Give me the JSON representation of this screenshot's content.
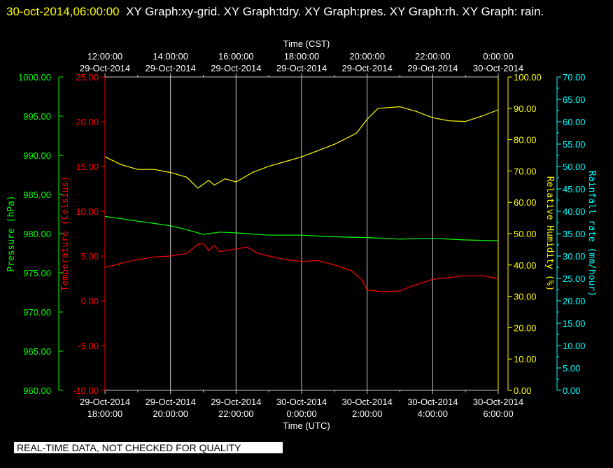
{
  "header": {
    "timestamp": "30-oct-2014,06:00:00",
    "graphs": "XY Graph:xy-grid.  XY Graph:tdry.  XY Graph:pres.  XY Graph:rh.  XY Graph: rain."
  },
  "footer_notice": "REAL-TIME DATA, NOT CHECKED FOR QUALITY",
  "colors": {
    "background": "#000000",
    "grid": "#c8c8c8",
    "temperature": "#ff0000",
    "pressure": "#00ff00",
    "humidity": "#ffff00",
    "rain": "#00ffff"
  },
  "chart_data": {
    "type": "line",
    "grid": true,
    "x_top": {
      "label": "Time (CST)",
      "ticks": [
        {
          "time": "12:00:00",
          "date": "29-Oct-2014"
        },
        {
          "time": "14:00:00",
          "date": "29-Oct-2014"
        },
        {
          "time": "16:00:00",
          "date": "29-Oct-2014"
        },
        {
          "time": "18:00:00",
          "date": "29-Oct-2014"
        },
        {
          "time": "20:00:00",
          "date": "29-Oct-2014"
        },
        {
          "time": "22:00:00",
          "date": "29-Oct-2014"
        },
        {
          "time": "0:00:00",
          "date": "30-Oct-2014"
        }
      ]
    },
    "x_bottom": {
      "label": "Time (UTC)",
      "ticks": [
        {
          "date": "29-Oct-2014",
          "time": "18:00:00"
        },
        {
          "date": "29-Oct-2014",
          "time": "20:00:00"
        },
        {
          "date": "29-Oct-2014",
          "time": "22:00:00"
        },
        {
          "date": "30-Oct-2014",
          "time": "0:00:00"
        },
        {
          "date": "30-Oct-2014",
          "time": "2:00:00"
        },
        {
          "date": "30-Oct-2014",
          "time": "4:00:00"
        },
        {
          "date": "30-Oct-2014",
          "time": "6:00:00"
        }
      ]
    },
    "axes": {
      "pressure": {
        "label": "Pressure (hPa)",
        "ylim": [
          960,
          1000
        ],
        "ticks": [
          "1000.00",
          "995.00",
          "990.00",
          "985.00",
          "980.00",
          "975.00",
          "970.00",
          "965.00",
          "960.00"
        ]
      },
      "temperature": {
        "label": "Temperature (Celsius)",
        "ylim": [
          -10,
          25
        ],
        "ticks": [
          "25.00",
          "20.00",
          "15.00",
          "10.00",
          "5.00",
          "0.00",
          "-5.00",
          "-10.00"
        ]
      },
      "humidity": {
        "label": "Relative Humidity (%)",
        "ylim": [
          0,
          100
        ],
        "ticks": [
          "100.00",
          "90.00",
          "80.00",
          "70.00",
          "60.00",
          "50.00",
          "40.00",
          "30.00",
          "20.00",
          "10.00",
          "0.00"
        ]
      },
      "rain": {
        "label": "Rainfall rate (mm/hour)",
        "ylim": [
          0,
          70
        ],
        "ticks": [
          "70.00",
          "65.00",
          "60.00",
          "55.00",
          "50.00",
          "45.00",
          "40.00",
          "35.00",
          "30.00",
          "25.00",
          "20.00",
          "15.00",
          "10.00",
          "5.00",
          "0.00"
        ]
      }
    },
    "x_unit": "UTC date-time",
    "series": [
      {
        "axis": "temperature",
        "points": [
          [
            "2014-10-29 18:00",
            3.7
          ],
          [
            "2014-10-29 18:30",
            4.2
          ],
          [
            "2014-10-29 19:00",
            4.6
          ],
          [
            "2014-10-29 19:30",
            4.9
          ],
          [
            "2014-10-29 20:00",
            5.0
          ],
          [
            "2014-10-29 20:30",
            5.3
          ],
          [
            "2014-10-29 20:50",
            6.3
          ],
          [
            "2014-10-29 21:00",
            6.4
          ],
          [
            "2014-10-29 21:10",
            5.6
          ],
          [
            "2014-10-29 21:20",
            6.2
          ],
          [
            "2014-10-29 21:30",
            5.5
          ],
          [
            "2014-10-29 22:00",
            5.8
          ],
          [
            "2014-10-29 22:20",
            6.0
          ],
          [
            "2014-10-29 22:40",
            5.3
          ],
          [
            "2014-10-29 23:00",
            5.0
          ],
          [
            "2014-10-29 23:30",
            4.6
          ],
          [
            "2014-10-30 00:00",
            4.4
          ],
          [
            "2014-10-30 00:30",
            4.5
          ],
          [
            "2014-10-30 01:00",
            4.0
          ],
          [
            "2014-10-30 01:30",
            3.4
          ],
          [
            "2014-10-30 01:50",
            2.4
          ],
          [
            "2014-10-30 02:00",
            1.2
          ],
          [
            "2014-10-30 02:30",
            1.0
          ],
          [
            "2014-10-30 03:00",
            1.1
          ],
          [
            "2014-10-30 03:20",
            1.6
          ],
          [
            "2014-10-30 03:40",
            2.0
          ],
          [
            "2014-10-30 04:00",
            2.4
          ],
          [
            "2014-10-30 04:30",
            2.6
          ],
          [
            "2014-10-30 05:00",
            2.8
          ],
          [
            "2014-10-30 05:30",
            2.8
          ],
          [
            "2014-10-30 06:00",
            2.5
          ]
        ]
      },
      {
        "axis": "pressure",
        "points": [
          [
            "2014-10-29 18:00",
            982.2
          ],
          [
            "2014-10-29 18:30",
            981.9
          ],
          [
            "2014-10-29 19:00",
            981.6
          ],
          [
            "2014-10-29 19:30",
            981.3
          ],
          [
            "2014-10-29 20:00",
            981.0
          ],
          [
            "2014-10-29 20:30",
            980.5
          ],
          [
            "2014-10-29 21:00",
            979.9
          ],
          [
            "2014-10-29 21:30",
            980.2
          ],
          [
            "2014-10-29 22:00",
            980.1
          ],
          [
            "2014-10-29 23:00",
            979.8
          ],
          [
            "2014-10-30 00:00",
            979.8
          ],
          [
            "2014-10-30 01:00",
            979.6
          ],
          [
            "2014-10-30 02:00",
            979.5
          ],
          [
            "2014-10-30 03:00",
            979.3
          ],
          [
            "2014-10-30 04:00",
            979.4
          ],
          [
            "2014-10-30 05:00",
            979.2
          ],
          [
            "2014-10-30 06:00",
            979.1
          ]
        ]
      },
      {
        "axis": "humidity",
        "points": [
          [
            "2014-10-29 18:00",
            74.5
          ],
          [
            "2014-10-29 18:30",
            72.0
          ],
          [
            "2014-10-29 19:00",
            70.5
          ],
          [
            "2014-10-29 19:30",
            70.5
          ],
          [
            "2014-10-29 20:00",
            69.5
          ],
          [
            "2014-10-29 20:30",
            68.0
          ],
          [
            "2014-10-29 20:50",
            64.5
          ],
          [
            "2014-10-29 21:10",
            67.0
          ],
          [
            "2014-10-29 21:20",
            65.5
          ],
          [
            "2014-10-29 21:40",
            67.5
          ],
          [
            "2014-10-29 22:00",
            66.5
          ],
          [
            "2014-10-29 22:30",
            69.5
          ],
          [
            "2014-10-29 23:00",
            71.5
          ],
          [
            "2014-10-29 23:30",
            73.0
          ],
          [
            "2014-10-30 00:00",
            74.5
          ],
          [
            "2014-10-30 00:30",
            76.5
          ],
          [
            "2014-10-30 01:00",
            78.5
          ],
          [
            "2014-10-30 01:40",
            82.0
          ],
          [
            "2014-10-30 02:00",
            86.5
          ],
          [
            "2014-10-30 02:20",
            90.0
          ],
          [
            "2014-10-30 03:00",
            90.5
          ],
          [
            "2014-10-30 03:30",
            89.0
          ],
          [
            "2014-10-30 04:00",
            87.0
          ],
          [
            "2014-10-30 04:30",
            86.0
          ],
          [
            "2014-10-30 05:00",
            85.8
          ],
          [
            "2014-10-30 05:30",
            87.5
          ],
          [
            "2014-10-30 06:00",
            89.5
          ]
        ]
      }
    ]
  }
}
